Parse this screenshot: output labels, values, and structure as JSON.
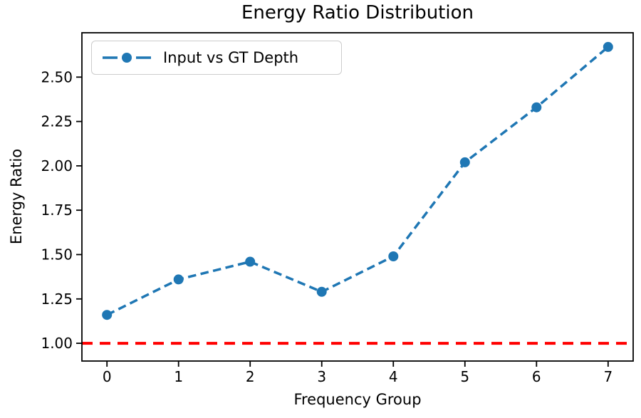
{
  "chart_data": {
    "type": "line",
    "title": "Energy Ratio Distribution",
    "xlabel": "Frequency Group",
    "ylabel": "Energy Ratio",
    "x": [
      0,
      1,
      2,
      3,
      4,
      5,
      6,
      7
    ],
    "series": [
      {
        "name": "Input vs GT Depth",
        "values": [
          1.16,
          1.36,
          1.46,
          1.29,
          1.49,
          2.02,
          2.33,
          2.67
        ],
        "color": "#1f77b4",
        "line_style": "dashed",
        "marker": "circle"
      }
    ],
    "reference_line": {
      "y": 1.0,
      "color": "#ff0000",
      "line_style": "dashed"
    },
    "xlim": [
      -0.35,
      7.35
    ],
    "ylim": [
      0.9,
      2.75
    ],
    "xtick_values": [
      0,
      1,
      2,
      3,
      4,
      5,
      6,
      7
    ],
    "xtick_labels": [
      "0",
      "1",
      "2",
      "3",
      "4",
      "5",
      "6",
      "7"
    ],
    "ytick_values": [
      1.0,
      1.25,
      1.5,
      1.75,
      2.0,
      2.25,
      2.5
    ],
    "ytick_labels": [
      "1.00",
      "1.25",
      "1.50",
      "1.75",
      "2.00",
      "2.25",
      "2.50"
    ],
    "grid": false,
    "legend": {
      "label": "Input vs GT Depth",
      "position": "upper-left"
    }
  },
  "colors": {
    "series_blue": "#1f77b4",
    "reference_red": "#ff0000",
    "axis_black": "#000000",
    "legend_border": "#cccccc",
    "background": "#ffffff"
  }
}
